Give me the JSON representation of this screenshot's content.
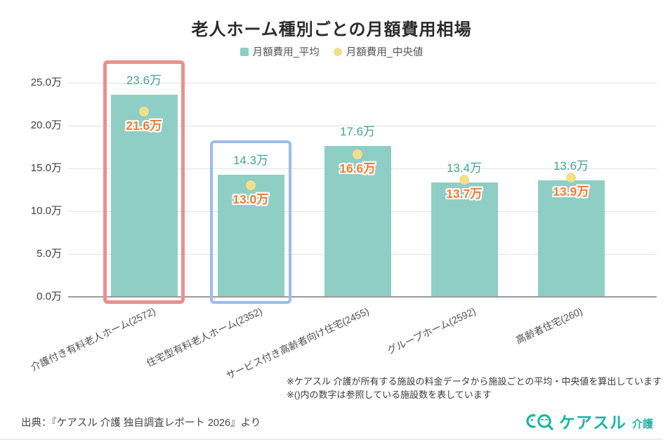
{
  "title": "老人ホーム種別ごとの月額費用相場",
  "legend": {
    "average": {
      "label": "月額費用_平均",
      "color": "#8fcec5"
    },
    "median": {
      "label": "月額費用_中央値",
      "color": "#f0e08a"
    }
  },
  "chart_data": {
    "type": "bar",
    "title": "老人ホーム種別ごとの月額費用相場",
    "unit": "万",
    "categories": [
      "介護付き有料老人ホーム(2572)",
      "住宅型有料老人ホーム(2352)",
      "サービス付き高齢者向け住宅(2455)",
      "グループホーム(2592)",
      "高齢者住宅(260)"
    ],
    "series": [
      {
        "name": "月額費用_平均",
        "render": "bar",
        "color": "#8fcec5",
        "values": [
          23.6,
          14.3,
          17.6,
          13.4,
          13.6
        ],
        "labels": [
          "23.6万",
          "14.3万",
          "17.6万",
          "13.4万",
          "13.6万"
        ],
        "label_color": "#46a295"
      },
      {
        "name": "月額費用_中央値",
        "render": "point",
        "color": "#f0e08a",
        "values": [
          21.6,
          13.0,
          16.6,
          13.7,
          13.9
        ],
        "labels": [
          "21.6万",
          "13.0万",
          "16.6万",
          "13.7万",
          "13.9万"
        ],
        "label_color": "#ed7d31"
      }
    ],
    "ylim": [
      0,
      25
    ],
    "ytick_step": 5,
    "ytick_labels": [
      "0.0万",
      "5.0万",
      "10.0万",
      "15.0万",
      "20.0万",
      "25.0万"
    ],
    "grid": true,
    "legend_position": "top",
    "highlights": [
      {
        "index": 0,
        "color": "#e98f8f",
        "border_px": 5
      },
      {
        "index": 1,
        "color": "#9dbbe9",
        "border_px": 4
      }
    ]
  },
  "footnotes": [
    "※ケアスル 介護が所有する施設の料金データから施設ごとの平均・中央値を算出しています",
    "※()内の数字は参照している施設数を表しています"
  ],
  "source": "出典：『ケアスル 介護 独自調査レポート 2026』より",
  "logo": {
    "text": "ケアスル",
    "suffix": "介護",
    "color": "#1cb5a3"
  }
}
